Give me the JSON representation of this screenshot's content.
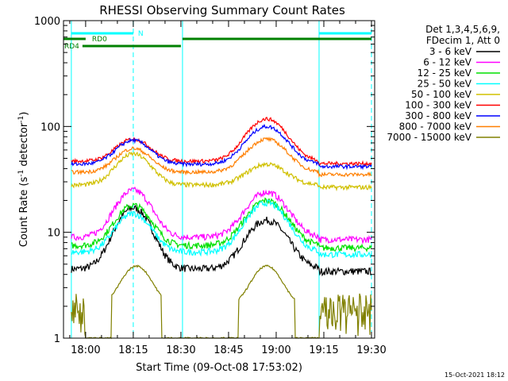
{
  "chart_data": {
    "type": "line",
    "title": "RHESSI Observing Summary Count Rates",
    "xlabel": "Start Time (09-Oct-08 17:53:02)",
    "ylabel_main": "Count Rate (s",
    "ylabel_sup1": "-1",
    "ylabel_mid": " detector",
    "ylabel_sup2": "-1",
    "ylabel_end": ")",
    "x_range_minutes": [
      17.883,
      31.0
    ],
    "x_ticks": [
      {
        "label": "18:00",
        "min": 60
      },
      {
        "label": "18:15",
        "min": 75
      },
      {
        "label": "18:30",
        "min": 90
      },
      {
        "label": "18:45",
        "min": 105
      },
      {
        "label": "19:00",
        "min": 120
      },
      {
        "label": "19:15",
        "min": 135
      },
      {
        "label": "19:30",
        "min": 150
      }
    ],
    "y_scale": "log",
    "ylim": [
      1,
      1000
    ],
    "y_ticks": [
      {
        "label": "1",
        "v": 1
      },
      {
        "label": "10",
        "v": 10
      },
      {
        "label": "100",
        "v": 100
      },
      {
        "label": "1000",
        "v": 1000
      }
    ],
    "legend_header": [
      "Det 1,3,4,5,6,9,",
      "FDecim 1, Att 0"
    ],
    "legend_placement": "right",
    "series": [
      {
        "name": "3 - 6 keV",
        "color": "#000000"
      },
      {
        "name": "6 - 12 keV",
        "color": "#ff00ff"
      },
      {
        "name": "12 - 25 keV",
        "color": "#00e000"
      },
      {
        "name": "25 - 50 keV",
        "color": "#00ffff"
      },
      {
        "name": "50 - 100 keV",
        "color": "#d0c000"
      },
      {
        "name": "100 - 300 keV",
        "color": "#ff0000"
      },
      {
        "name": "300 - 800 keV",
        "color": "#0000ff"
      },
      {
        "name": "800 - 7000 keV",
        "color": "#ff7f00"
      },
      {
        "name": "7000 - 15000 keV",
        "color": "#808000"
      }
    ],
    "flags": [
      {
        "label": "N",
        "color": "#00ffff"
      },
      {
        "label": "RD0",
        "color": "#008000"
      },
      {
        "label": "RD4",
        "color": "#008000"
      }
    ],
    "timestamp": "15-Oct-2021 18:12"
  }
}
